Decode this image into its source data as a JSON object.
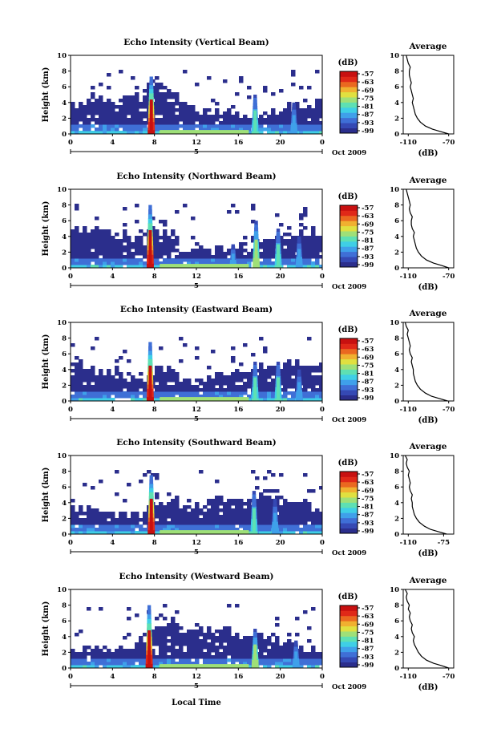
{
  "chart_data": [
    {
      "type": "heatmap",
      "title": "Echo Intensity (Vertical Beam)",
      "xlabel": "",
      "ylabel": "Height (km)",
      "xlim": [
        0,
        24
      ],
      "ylim": [
        0,
        10
      ],
      "xticks": [
        "0",
        "4",
        "8",
        "12",
        "16",
        "20",
        "0"
      ],
      "yticks": [
        "0",
        "2",
        "4",
        "6",
        "8",
        "10"
      ],
      "date_marker": "5",
      "date_label": "Oct 2009",
      "colorbar": {
        "label": "(dB)",
        "ticks": [
          "-57",
          "-63",
          "-69",
          "-75",
          "-81",
          "-87",
          "-93",
          "-99"
        ]
      },
      "storm_events": [
        {
          "hour": 7.7,
          "top_km": 7.3,
          "peak_db": -57
        },
        {
          "hour": 17.6,
          "top_km": 5,
          "peak_db": -81
        },
        {
          "hour": 21.3,
          "top_km": 4,
          "peak_db": -87
        }
      ],
      "average_profile": {
        "title": "Average",
        "xlabel": "(dB)",
        "xticks": [
          "-110",
          "-70"
        ],
        "xlim": [
          -115,
          -65
        ],
        "height_km": [
          0,
          0.3,
          0.6,
          1,
          1.5,
          2,
          2.5,
          3,
          3.5,
          4,
          4.5,
          5,
          5.5,
          6,
          6.5,
          7,
          7.5,
          8,
          8.5,
          9,
          9.5,
          10
        ],
        "db": [
          -70,
          -78,
          -86,
          -93,
          -98,
          -101,
          -103,
          -104,
          -105,
          -106,
          -105,
          -106,
          -107,
          -108,
          -107,
          -108,
          -109,
          -109,
          -108,
          -110,
          -111,
          -112
        ]
      }
    },
    {
      "type": "heatmap",
      "title": "Echo Intensity (Northward Beam)",
      "xlabel": "",
      "ylabel": "Height (km)",
      "xlim": [
        0,
        24
      ],
      "ylim": [
        0,
        10
      ],
      "xticks": [
        "0",
        "4",
        "8",
        "12",
        "16",
        "20",
        "0"
      ],
      "yticks": [
        "0",
        "2",
        "4",
        "6",
        "8",
        "10"
      ],
      "date_marker": "5",
      "date_label": "Oct 2009",
      "colorbar": {
        "label": "(dB)",
        "ticks": [
          "-57",
          "-63",
          "-69",
          "-75",
          "-81",
          "-87",
          "-93",
          "-99"
        ]
      },
      "storm_events": [
        {
          "hour": 7.6,
          "top_km": 8,
          "peak_db": -57
        },
        {
          "hour": 15.5,
          "top_km": 3,
          "peak_db": -87
        },
        {
          "hour": 17.7,
          "top_km": 6,
          "peak_db": -75
        },
        {
          "hour": 19.8,
          "top_km": 5,
          "peak_db": -81
        },
        {
          "hour": 21.8,
          "top_km": 4,
          "peak_db": -87
        }
      ],
      "average_profile": {
        "title": "Average",
        "xlabel": "(dB)",
        "xticks": [
          "-110",
          "-70"
        ],
        "xlim": [
          -115,
          -65
        ],
        "height_km": [
          0,
          0.3,
          0.6,
          1,
          1.5,
          2,
          2.5,
          3,
          3.5,
          4,
          4.5,
          5,
          5.5,
          6,
          6.5,
          7,
          7.5,
          8,
          8.5,
          9,
          9.5,
          10
        ],
        "db": [
          -70,
          -77,
          -85,
          -92,
          -97,
          -100,
          -102,
          -103,
          -104,
          -105,
          -104,
          -106,
          -107,
          -107,
          -106,
          -108,
          -109,
          -108,
          -109,
          -110,
          -111,
          -112
        ]
      }
    },
    {
      "type": "heatmap",
      "title": "Echo Intensity (Eastward Beam)",
      "xlabel": "",
      "ylabel": "Height (km)",
      "xlim": [
        0,
        24
      ],
      "ylim": [
        0,
        10
      ],
      "xticks": [
        "0",
        "4",
        "8",
        "12",
        "16",
        "20",
        "0"
      ],
      "yticks": [
        "0",
        "2",
        "4",
        "6",
        "8",
        "10"
      ],
      "date_marker": "5",
      "date_label": "Oct 2009",
      "colorbar": {
        "label": "(dB)",
        "ticks": [
          "-57",
          "-63",
          "-69",
          "-75",
          "-81",
          "-87",
          "-93",
          "-99"
        ]
      },
      "storm_events": [
        {
          "hour": 7.6,
          "top_km": 7.5,
          "peak_db": -57
        },
        {
          "hour": 17.6,
          "top_km": 5,
          "peak_db": -81
        },
        {
          "hour": 19.8,
          "top_km": 5,
          "peak_db": -81
        },
        {
          "hour": 21.8,
          "top_km": 4,
          "peak_db": -87
        }
      ],
      "average_profile": {
        "title": "Average",
        "xlabel": "(dB)",
        "xticks": [
          "-110",
          "-70"
        ],
        "xlim": [
          -115,
          -65
        ],
        "height_km": [
          0,
          0.3,
          0.6,
          1,
          1.5,
          2,
          2.5,
          3,
          3.5,
          4,
          4.5,
          5,
          5.5,
          6,
          6.5,
          7,
          7.5,
          8,
          8.5,
          9,
          9.5,
          10
        ],
        "db": [
          -71,
          -79,
          -87,
          -93,
          -98,
          -101,
          -103,
          -104,
          -105,
          -105,
          -106,
          -107,
          -106,
          -108,
          -109,
          -108,
          -109,
          -110,
          -111,
          -110,
          -112,
          -113
        ]
      }
    },
    {
      "type": "heatmap",
      "title": "Echo Intensity (Southward Beam)",
      "xlabel": "",
      "ylabel": "Height (km)",
      "xlim": [
        0,
        24
      ],
      "ylim": [
        0,
        10
      ],
      "xticks": [
        "0",
        "4",
        "8",
        "12",
        "16",
        "20",
        "0"
      ],
      "yticks": [
        "0",
        "2",
        "4",
        "6",
        "8",
        "10"
      ],
      "date_marker": "5",
      "date_label": "Oct 2009",
      "colorbar": {
        "label": "(dB)",
        "ticks": [
          "-57",
          "-63",
          "-69",
          "-75",
          "-81",
          "-87",
          "-93",
          "-99"
        ]
      },
      "storm_events": [
        {
          "hour": 7.7,
          "top_km": 7.5,
          "peak_db": -57
        },
        {
          "hour": 17.5,
          "top_km": 5.5,
          "peak_db": -81
        },
        {
          "hour": 19.5,
          "top_km": 4.5,
          "peak_db": -87
        }
      ],
      "average_profile": {
        "title": "Average",
        "xlabel": "(dB)",
        "xticks": [
          "-110",
          "-75"
        ],
        "xlim": [
          -115,
          -65
        ],
        "height_km": [
          0,
          0.3,
          0.6,
          1,
          1.5,
          2,
          2.5,
          3,
          3.5,
          4,
          4.5,
          5,
          5.5,
          6,
          6.5,
          7,
          7.5,
          8,
          8.5,
          9,
          9.5,
          10
        ],
        "db": [
          -72,
          -80,
          -88,
          -94,
          -99,
          -102,
          -104,
          -105,
          -106,
          -106,
          -107,
          -106,
          -108,
          -109,
          -108,
          -109,
          -110,
          -109,
          -111,
          -112,
          -111,
          -113
        ]
      }
    },
    {
      "type": "heatmap",
      "title": "Echo Intensity (Westward Beam)",
      "xlabel": "Local Time",
      "ylabel": "Height (km)",
      "xlim": [
        0,
        24
      ],
      "ylim": [
        0,
        10
      ],
      "xticks": [
        "0",
        "4",
        "8",
        "12",
        "16",
        "20",
        "0"
      ],
      "yticks": [
        "0",
        "2",
        "4",
        "6",
        "8",
        "10"
      ],
      "date_marker": "5",
      "date_label": "Oct 2009",
      "colorbar": {
        "label": "(dB)",
        "ticks": [
          "-57",
          "-63",
          "-69",
          "-75",
          "-81",
          "-87",
          "-93",
          "-99"
        ]
      },
      "storm_events": [
        {
          "hour": 7.5,
          "top_km": 8,
          "peak_db": -57
        },
        {
          "hour": 17.6,
          "top_km": 5,
          "peak_db": -75
        },
        {
          "hour": 21.5,
          "top_km": 3.5,
          "peak_db": -87
        }
      ],
      "average_profile": {
        "title": "Average",
        "xlabel": "(dB)",
        "xticks": [
          "-110",
          "-70"
        ],
        "xlim": [
          -115,
          -65
        ],
        "height_km": [
          0,
          0.3,
          0.6,
          1,
          1.5,
          2,
          2.5,
          3,
          3.5,
          4,
          4.5,
          5,
          5.5,
          6,
          6.5,
          7,
          7.5,
          8,
          8.5,
          9,
          9.5,
          10
        ],
        "db": [
          -70,
          -77,
          -85,
          -92,
          -97,
          -100,
          -102,
          -104,
          -105,
          -104,
          -106,
          -107,
          -106,
          -108,
          -109,
          -108,
          -110,
          -109,
          -111,
          -112,
          -111,
          -113
        ]
      }
    }
  ],
  "colorscale": [
    "#2b2e8c",
    "#3549b4",
    "#3f6fd6",
    "#3fa0ea",
    "#3fcfe6",
    "#5ee0b3",
    "#9fe078",
    "#e0e040",
    "#f0b030",
    "#ea6820",
    "#e02818",
    "#c81010"
  ]
}
